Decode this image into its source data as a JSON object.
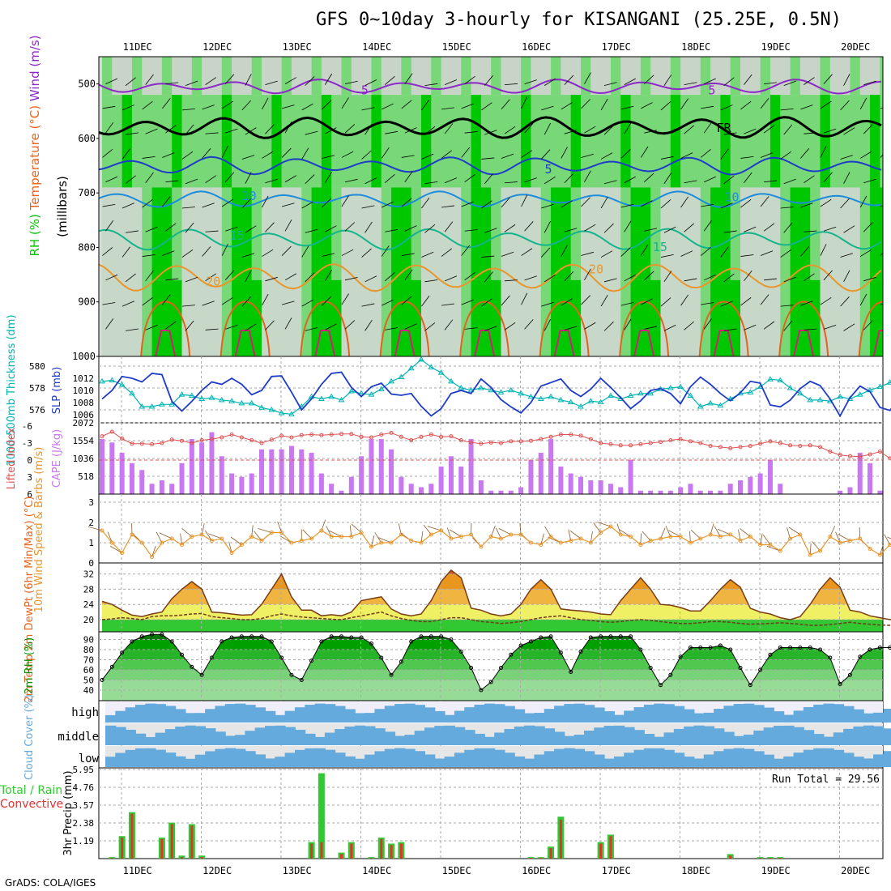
{
  "title": "GFS 0~10day 3-hourly for KISANGANI (25.25E, 0.5N)",
  "credit": "GrADS: COLA/IGES",
  "dates": [
    "11DEC",
    "12DEC",
    "13DEC",
    "14DEC",
    "15DEC",
    "16DEC",
    "17DEC",
    "18DEC",
    "19DEC",
    "20DEC"
  ],
  "colors": {
    "rh_dark": "#00c800",
    "rh_mid": "#78d878",
    "rh_light": "#c8d8c8",
    "thick": "#00b4b4",
    "slp": "#1e3cc8",
    "cape": "#c878f0",
    "li": "#e05050",
    "wind": "#e8962c",
    "temp": "#e8641e",
    "rh2m": "#009600",
    "cloud": "#64aadc",
    "precip_total": "#32c832",
    "precip_conv": "#e03232"
  },
  "chart_data": [
    {
      "type": "heatmap",
      "panel": "upper_air",
      "ylabel_parts": [
        "RH (%)",
        "Temperature (°C)",
        "Wind (m/s)"
      ],
      "ylabel2": "(millibars)",
      "yticks": [
        500,
        600,
        700,
        800,
        900,
        1000
      ],
      "ylim": [
        1000,
        450
      ],
      "isotherm_labels": [
        {
          "text": "5",
          "day": 3.05,
          "p": 519,
          "color": "#8c28c8"
        },
        {
          "text": "5",
          "day": 7.4,
          "p": 519,
          "color": "#8c28c8"
        },
        {
          "text": "FR",
          "day": 7.55,
          "p": 588,
          "color": "#000000"
        },
        {
          "text": "5",
          "day": 5.35,
          "p": 664,
          "color": "#1e3cc8"
        },
        {
          "text": "10",
          "day": 1.6,
          "p": 713,
          "color": "#1e8cdc"
        },
        {
          "text": "10",
          "day": 7.65,
          "p": 715,
          "color": "#1e8cdc"
        },
        {
          "text": "15",
          "day": 1.45,
          "p": 786,
          "color": "#14b48c"
        },
        {
          "text": "15",
          "day": 6.75,
          "p": 807,
          "color": "#14b48c"
        },
        {
          "text": "20",
          "day": 1.15,
          "p": 870,
          "color": "#e8962c"
        },
        {
          "text": "20",
          "day": 5.95,
          "p": 848,
          "color": "#e8962c"
        }
      ]
    },
    {
      "type": "line",
      "panel": "thickness_slp",
      "ylabel": "1000-500mb Thickness (dm)",
      "ylabel2": "SLP (mb)",
      "yticks_left": [
        576,
        578,
        580
      ],
      "yticks_right": [
        1006,
        1008,
        1010,
        1012
      ],
      "series": [
        {
          "name": "Thickness",
          "axis": "left",
          "values": [
            578.6,
            578.7,
            578.3,
            577.5,
            576.3,
            576.3,
            576.5,
            576.5,
            577.4,
            577.3,
            577.0,
            577.1,
            576.9,
            576.8,
            576.6,
            576.6,
            576.2,
            576.0,
            575.7,
            575.6,
            576.3,
            577.2,
            577.0,
            577.2,
            576.9,
            577.7,
            577.5,
            577.4,
            577.9,
            578.6,
            579.0,
            579.8,
            580.6,
            579.9,
            579.4,
            578.6,
            578.0,
            577.8,
            578.0,
            577.8,
            577.6,
            577.8,
            577.5,
            577.2,
            577.0,
            577.2,
            576.9,
            576.7,
            576.3,
            576.8,
            576.7,
            577.3,
            577.0,
            577.3,
            577.5,
            577.5,
            577.9,
            578.0,
            578.1,
            577.3,
            576.3,
            576.6,
            576.4,
            577.0,
            577.5,
            577.6,
            578.1,
            578.8,
            578.7,
            578.0,
            577.5,
            576.9,
            576.9,
            576.8,
            577.2,
            577.0,
            577.4,
            577.8,
            578.1,
            578.5,
            578.3,
            578.0
          ]
        },
        {
          "name": "SLP",
          "axis": "right",
          "values": [
            1008.6,
            1010.0,
            1012.3,
            1012.0,
            1011.4,
            1012.8,
            1012.6,
            1008.2,
            1006.6,
            1008.2,
            1010.0,
            1011.4,
            1011.0,
            1012.0,
            1011.0,
            1009.3,
            1010.0,
            1012.3,
            1012.4,
            1009.7,
            1006.8,
            1008.6,
            1011.0,
            1012.8,
            1013.0,
            1010.5,
            1009.0,
            1010.6,
            1011.2,
            1009.4,
            1009.2,
            1009.5,
            1007.4,
            1005.8,
            1007.0,
            1009.5,
            1010.0,
            1009.5,
            1011.9,
            1010.5,
            1008.5,
            1007.3,
            1006.3,
            1008.0,
            1010.7,
            1011.3,
            1011.9,
            1010.0,
            1009.0,
            1010.2,
            1012.0,
            1010.5,
            1008.8,
            1007.0,
            1008.3,
            1010.0,
            1010.3,
            1009.5,
            1007.8,
            1010.6,
            1012.2,
            1011.0,
            1009.5,
            1008.3,
            1009.6,
            1011.5,
            1011.2,
            1007.6,
            1007.3,
            1008.4,
            1010.3,
            1011.5,
            1010.8,
            1008.6,
            1005.8,
            1008.8,
            1010.7,
            1009.8,
            1007.2,
            1006.7,
            1008.8,
            1010.0
          ]
        }
      ]
    },
    {
      "type": "bar",
      "panel": "cape_li",
      "ylabel": "Lifted Index",
      "ylabel2": "CAPE (J/kg)",
      "yticks_left": [
        -6,
        -3,
        0,
        3,
        6
      ],
      "yticks_right": [
        518,
        1036,
        1554,
        2072
      ],
      "series": [
        {
          "name": "CAPE",
          "values": [
            1600,
            1500,
            1200,
            900,
            700,
            300,
            400,
            300,
            900,
            1600,
            1500,
            1800,
            1100,
            600,
            500,
            600,
            1300,
            1300,
            1300,
            1400,
            1300,
            1200,
            600,
            300,
            100,
            500,
            1100,
            1600,
            1600,
            1300,
            500,
            300,
            200,
            300,
            800,
            1100,
            800,
            1600,
            400,
            100,
            100,
            100,
            200,
            1000,
            1200,
            1600,
            800,
            600,
            500,
            400,
            400,
            300,
            200,
            1000,
            100,
            100,
            100,
            100,
            200,
            300,
            100,
            100,
            100,
            300,
            400,
            500,
            600,
            1000,
            300,
            0,
            0,
            0,
            0,
            0,
            100,
            200,
            1200,
            900,
            100,
            0,
            0,
            100
          ]
        },
        {
          "name": "Lifted Index",
          "values": [
            -4.2,
            -5.0,
            -3.8,
            -2.9,
            -2.9,
            -2.8,
            -3.0,
            -3.6,
            -3.4,
            -3.0,
            -3.5,
            -3.7,
            -4.0,
            -4.5,
            -4.0,
            -3.5,
            -3.0,
            -3.6,
            -4.3,
            -4.0,
            -4.4,
            -4.5,
            -4.4,
            -4.5,
            -4.6,
            -4.6,
            -4.1,
            -4.0,
            -4.5,
            -4.8,
            -4.1,
            -3.5,
            -4.1,
            -4.5,
            -4.1,
            -4.2,
            -3.5,
            -3.1,
            -2.9,
            -3.1,
            -3.0,
            -3.3,
            -3.3,
            -3.4,
            -3.7,
            -4.1,
            -4.5,
            -4.5,
            -4.3,
            -3.7,
            -3.0,
            -2.8,
            -2.6,
            -2.6,
            -2.8,
            -3.0,
            -3.2,
            -3.5,
            -3.7,
            -3.3,
            -3.0,
            -2.5,
            -2.3,
            -2.1,
            -2.3,
            -2.5,
            -2.9,
            -3.3,
            -3.0,
            -2.6,
            -2.5,
            -2.6,
            -2.3,
            -1.5,
            -0.9,
            -0.7,
            -0.6,
            -1.0,
            -1.5,
            -0.3,
            -0.9,
            0.4
          ]
        }
      ]
    },
    {
      "type": "line",
      "panel": "wind10m",
      "ylabel": "10m Wind Speed & Barbs (m/s)",
      "yticks": [
        0,
        1,
        2,
        3
      ],
      "series": [
        {
          "name": "10m Wind Speed",
          "values": [
            1.6,
            1.0,
            0.5,
            1.4,
            1.0,
            0.3,
            1.0,
            1.2,
            0.9,
            1.3,
            1.4,
            1.1,
            1.2,
            0.5,
            0.9,
            1.3,
            1.1,
            1.5,
            1.5,
            1.0,
            1.1,
            1.2,
            1.6,
            1.3,
            1.3,
            1.3,
            1.5,
            0.8,
            1.0,
            1.0,
            1.4,
            1.1,
            1.0,
            1.4,
            1.6,
            1.2,
            1.3,
            1.4,
            0.8,
            1.3,
            1.2,
            1.4,
            1.4,
            1.0,
            0.9,
            1.3,
            1.0,
            1.1,
            1.2,
            1.0,
            1.5,
            1.8,
            1.4,
            1.3,
            0.9,
            1.1,
            1.2,
            1.3,
            1.3,
            1.0,
            1.2,
            1.4,
            1.3,
            1.4,
            1.1,
            1.3,
            0.9,
            0.9,
            0.6,
            1.2,
            1.4,
            0.4,
            0.6,
            1.3,
            1.0,
            1.1,
            1.2,
            0.7,
            0.4,
            0.9,
            1.0,
            1.1
          ]
        }
      ]
    },
    {
      "type": "area",
      "panel": "temp2m",
      "ylabel": "2m Temp 2m DewPt (6hr Min/Max) (°C)",
      "yticks": [
        20,
        24,
        28,
        32
      ],
      "series": [
        {
          "name": "2m Temp",
          "values": [
            24.8,
            24.0,
            22.5,
            21.2,
            20.8,
            21.5,
            22.0,
            25.5,
            28.0,
            30.0,
            28.0,
            22.0,
            21.8,
            21.5,
            21.2,
            21.3,
            24.0,
            28.0,
            32.0,
            26.0,
            22.5,
            22.5,
            21.0,
            21.3,
            21.0,
            22.0,
            25.0,
            25.5,
            26.0,
            22.8,
            21.5,
            21.0,
            21.5,
            25.0,
            30.0,
            33.0,
            31.0,
            23.0,
            22.5,
            21.5,
            21.0,
            21.5,
            24.0,
            28.0,
            30.5,
            28.0,
            22.8,
            22.5,
            22.3,
            22.0,
            21.5,
            21.3,
            25.0,
            28.0,
            31.0,
            28.0,
            24.0,
            23.8,
            23.2,
            22.3,
            22.3,
            25.0,
            28.0,
            30.5,
            28.5,
            23.0,
            22.0,
            21.5,
            20.5,
            20.0,
            20.8,
            24.0,
            28.0,
            31.0,
            28.5,
            22.5,
            22.0,
            21.0,
            20.5,
            20.0,
            20.5,
            24.0
          ]
        },
        {
          "name": "2m DewPt",
          "values": [
            20.0,
            20.2,
            20.5,
            20.3,
            20.0,
            20.8,
            21.0,
            21.0,
            21.2,
            21.5,
            21.6,
            20.8,
            20.5,
            20.3,
            20.0,
            20.0,
            20.3,
            21.0,
            21.5,
            21.0,
            20.7,
            20.5,
            20.3,
            20.1,
            20.0,
            20.5,
            21.0,
            21.5,
            22.0,
            21.0,
            20.3,
            19.8,
            19.5,
            19.5,
            20.0,
            20.5,
            20.5,
            20.0,
            19.5,
            19.3,
            19.0,
            19.2,
            19.5,
            20.0,
            20.5,
            20.8,
            21.0,
            20.5,
            20.0,
            19.8,
            19.5,
            19.3,
            19.5,
            19.8,
            20.0,
            19.8,
            19.5,
            19.2,
            19.0,
            19.0,
            19.2,
            19.5,
            19.5,
            19.3,
            19.0,
            18.8,
            18.9,
            19.0,
            19.2,
            19.0,
            18.8,
            18.5,
            18.5,
            18.7,
            19.0,
            19.3,
            19.0,
            18.8,
            18.6,
            18.5,
            18.4,
            18.6
          ]
        }
      ]
    },
    {
      "type": "area",
      "panel": "rh2m",
      "ylabel": "2m RH (%)",
      "yticks": [
        40,
        50,
        60,
        70,
        80,
        90
      ],
      "series": [
        {
          "name": "2m RH",
          "values": [
            50,
            63,
            77,
            88,
            93,
            95,
            95,
            88,
            75,
            63,
            55,
            72,
            88,
            92,
            93,
            93,
            93,
            88,
            72,
            55,
            50,
            69,
            88,
            93,
            93,
            92,
            92,
            86,
            72,
            55,
            68,
            88,
            93,
            93,
            93,
            90,
            78,
            62,
            40,
            48,
            62,
            75,
            84,
            88,
            92,
            93,
            77,
            58,
            78,
            92,
            93,
            93,
            93,
            93,
            80,
            62,
            45,
            55,
            73,
            82,
            82,
            82,
            84,
            80,
            62,
            45,
            60,
            75,
            82,
            82,
            82,
            82,
            80,
            72,
            46,
            55,
            73,
            80,
            82,
            82,
            82,
            86
          ]
        }
      ]
    },
    {
      "type": "area",
      "panel": "cloud",
      "ylabel": "Cloud Cover (%)",
      "layer_labels": [
        "high",
        "middle",
        "low"
      ]
    },
    {
      "type": "bar",
      "panel": "precip",
      "ylabel": "Total / Rain Convective 3hr Precip (mm)",
      "yticks": [
        1.19,
        2.38,
        3.57,
        4.76,
        5.95
      ],
      "annotation": "Run Total = 29.56",
      "series": [
        {
          "name": "Total",
          "values": [
            0,
            0.1,
            1.5,
            3.1,
            0,
            0,
            1.4,
            2.4,
            0.2,
            2.3,
            0.2,
            0,
            0,
            0,
            0,
            0,
            0,
            0,
            0,
            0,
            0,
            1.1,
            5.7,
            0,
            0.4,
            1.1,
            0,
            0.1,
            1.4,
            1.0,
            1.1,
            0,
            0,
            0,
            0,
            0,
            0,
            0,
            0,
            0,
            0,
            0,
            0,
            0.1,
            0.1,
            0.8,
            2.8,
            0,
            0,
            0,
            1.1,
            1.6,
            0,
            0,
            0,
            0,
            0,
            0,
            0,
            0,
            0,
            0,
            0,
            0.3,
            0,
            0,
            0.1,
            0.1,
            0.1,
            0,
            0,
            0,
            0,
            0,
            0,
            0,
            0,
            0,
            0,
            0,
            0,
            0
          ]
        },
        {
          "name": "Convective",
          "values": [
            0,
            0.05,
            1.4,
            3.0,
            0,
            0,
            1.3,
            2.3,
            0.1,
            2.2,
            0.1,
            0,
            0,
            0,
            0,
            0,
            0,
            0,
            0,
            0,
            0,
            1.0,
            1.1,
            0,
            0.3,
            1.0,
            0,
            0.05,
            1.3,
            0.9,
            1.0,
            0,
            0,
            0,
            0,
            0,
            0,
            0,
            0,
            0,
            0,
            0,
            0,
            0.05,
            0.05,
            0.7,
            2.6,
            0,
            0,
            0,
            1.0,
            1.5,
            0,
            0,
            0,
            0,
            0,
            0,
            0,
            0,
            0,
            0,
            0,
            0.2,
            0,
            0,
            0.05,
            0.05,
            0.05,
            0,
            0,
            0,
            0,
            0,
            0,
            0,
            0,
            0,
            0.1,
            0,
            0,
            0
          ]
        }
      ]
    }
  ]
}
